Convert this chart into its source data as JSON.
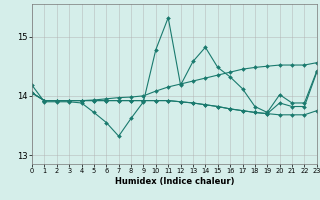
{
  "xlabel": "Humidex (Indice chaleur)",
  "bg_color": "#d5eeea",
  "grid_color": "#b0b0b0",
  "line_color": "#1a7a6e",
  "xlim": [
    0,
    23
  ],
  "ylim": [
    12.85,
    15.55
  ],
  "yticks": [
    13,
    14,
    15
  ],
  "xticks": [
    0,
    1,
    2,
    3,
    4,
    5,
    6,
    7,
    8,
    9,
    10,
    11,
    12,
    13,
    14,
    15,
    16,
    17,
    18,
    19,
    20,
    21,
    22,
    23
  ],
  "series": [
    [
      14.18,
      13.9,
      13.9,
      13.9,
      13.88,
      13.72,
      13.55,
      13.32,
      13.62,
      13.9,
      14.78,
      15.32,
      14.18,
      14.58,
      14.82,
      14.48,
      14.32,
      14.12,
      13.82,
      13.72,
      14.02,
      13.88,
      13.88,
      14.42
    ],
    [
      14.05,
      13.92,
      13.92,
      13.92,
      13.92,
      13.93,
      13.95,
      13.97,
      13.98,
      14.0,
      14.08,
      14.15,
      14.2,
      14.25,
      14.3,
      14.35,
      14.4,
      14.45,
      14.48,
      14.5,
      14.52,
      14.52,
      14.52,
      14.56
    ],
    [
      14.05,
      13.92,
      13.92,
      13.92,
      13.92,
      13.92,
      13.92,
      13.92,
      13.92,
      13.92,
      13.92,
      13.92,
      13.9,
      13.88,
      13.85,
      13.82,
      13.78,
      13.75,
      13.72,
      13.7,
      13.68,
      13.68,
      13.68,
      13.75
    ],
    [
      14.05,
      13.92,
      13.92,
      13.92,
      13.92,
      13.92,
      13.92,
      13.92,
      13.92,
      13.92,
      13.92,
      13.92,
      13.9,
      13.88,
      13.85,
      13.82,
      13.78,
      13.75,
      13.72,
      13.7,
      13.88,
      13.82,
      13.82,
      14.4
    ]
  ]
}
